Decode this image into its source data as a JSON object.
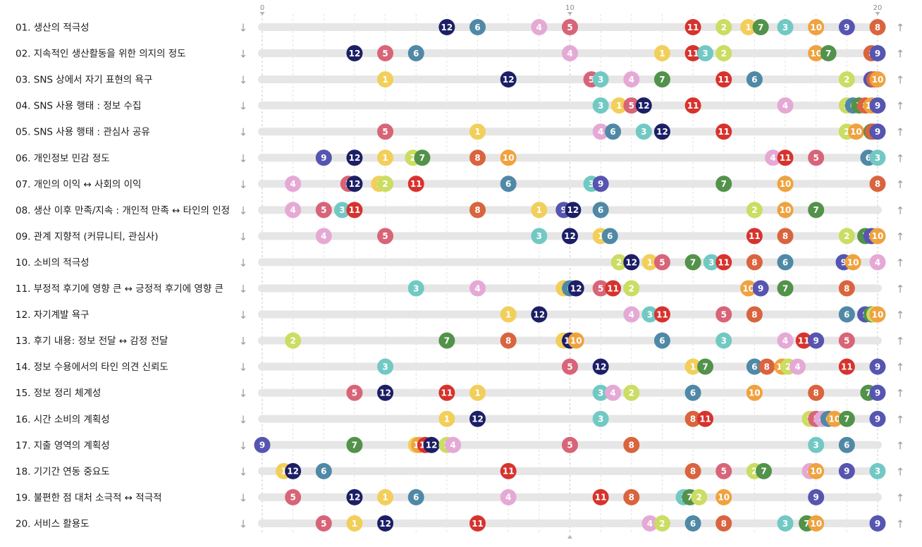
{
  "chart_data": {
    "type": "scatter",
    "xlim": [
      0,
      20
    ],
    "x_ticks": [
      "0",
      "10",
      "20"
    ],
    "low_arrow": "↓",
    "high_arrow": "↑",
    "series_colors": {
      "1": "#f2cf5b",
      "2": "#cbdd62",
      "3": "#72c9c4",
      "4": "#e5a9d6",
      "5": "#d86478",
      "6": "#4f89a6",
      "7": "#52924a",
      "8": "#d9643e",
      "9": "#5655b0",
      "10": "#efa23e",
      "11": "#d7332e",
      "12": "#1c1f66"
    },
    "rows": [
      {
        "label": "01. 생산의 적극성",
        "points": {
          "12": 6,
          "6": 7,
          "4": 9,
          "5": 10,
          "11": 14,
          "2": 15,
          "1": 15.8,
          "7": 16.2,
          "3": 17,
          "10": 18,
          "9": 19,
          "8": 20
        }
      },
      {
        "label": "02. 지속적인 생산활동을 위한 의지의 정도",
        "points": {
          "12": 3,
          "5": 4,
          "6": 5,
          "4": 10,
          "1": 13,
          "11": 14,
          "3": 14.4,
          "2": 15,
          "10": 18,
          "7": 18.4,
          "8": 19.8,
          "9": 20
        }
      },
      {
        "label": "03. SNS 상에서 자기 표현의 욕구",
        "points": {
          "1": 4,
          "12": 8,
          "5": 10.7,
          "3": 11,
          "4": 12,
          "7": 13,
          "11": 15,
          "6": 16,
          "2": 19,
          "9": 19.8,
          "8": 19.9,
          "10": 20
        }
      },
      {
        "label": "04. SNS 사용 행태 : 정보 수집",
        "points": {
          "3": 11,
          "1": 11.6,
          "5": 12,
          "12": 12.4,
          "11": 14,
          "4": 17,
          "2": 19,
          "6": 19.2,
          "7": 19.4,
          "8": 19.6,
          "10": 19.8,
          "9": 20
        }
      },
      {
        "label": "05. SNS 사용 행태 : 관심사 공유",
        "points": {
          "5": 4,
          "1": 7,
          "4": 11,
          "6": 11.4,
          "3": 12.4,
          "12": 13,
          "11": 15,
          "2": 19,
          "10": 19.3,
          "7": 19.8,
          "8": 19.85,
          "9": 20
        }
      },
      {
        "label": "06. 개인정보 민감 정도",
        "points": {
          "9": 2,
          "12": 3,
          "1": 4,
          "2": 4.9,
          "7": 5.2,
          "8": 7,
          "10": 8,
          "4": 16.6,
          "11": 17,
          "5": 18,
          "6": 19.7,
          "3": 20
        }
      },
      {
        "label": "07. 개인의 이익 ↔ 사회의 이익",
        "points": {
          "4": 1,
          "5": 2.8,
          "12": 3,
          "1": 3.8,
          "2": 4,
          "11": 5,
          "6": 8,
          "3": 10.7,
          "9": 11,
          "7": 15,
          "10": 17,
          "8": 20
        }
      },
      {
        "label": "08. 생산 이후 만족/지속 : 개인적 만족 ↔ 타인의 인정",
        "points": {
          "4": 1,
          "5": 2,
          "3": 2.6,
          "11": 3,
          "8": 7,
          "1": 9,
          "9": 9.8,
          "12": 10.1,
          "6": 11,
          "2": 16,
          "10": 17,
          "7": 18
        }
      },
      {
        "label": "09. 관계 지향적 (커뮤니티, 관심사)",
        "points": {
          "4": 2,
          "5": 4,
          "3": 9,
          "12": 10,
          "1": 11,
          "6": 11.3,
          "11": 16,
          "8": 17,
          "2": 19,
          "7": 19.6,
          "9": 19.8,
          "10": 20
        }
      },
      {
        "label": "10. 소비의 적극성",
        "points": {
          "2": 11.6,
          "12": 12,
          "1": 12.6,
          "5": 13,
          "7": 14,
          "3": 14.6,
          "11": 15,
          "8": 16,
          "6": 17,
          "9": 18.9,
          "10": 19.2,
          "4": 20
        }
      },
      {
        "label": "11. 부정적 후기에 영향 큰 ↔ 긍정적 후기에 영향 큰",
        "points": {
          "3": 5,
          "4": 7,
          "1": 9.8,
          "6": 10,
          "12": 10.2,
          "5": 11,
          "11": 11.4,
          "2": 12,
          "10": 15.8,
          "9": 16.2,
          "7": 17,
          "8": 19
        }
      },
      {
        "label": "12. 자기계발 욕구",
        "points": {
          "1": 8,
          "12": 9,
          "4": 12,
          "3": 12.6,
          "11": 13,
          "5": 15,
          "8": 16,
          "6": 19,
          "9": 19.6,
          "7": 19.8,
          "2": 19.9,
          "10": 20
        }
      },
      {
        "label": "13. 후기 내용: 정보 전달 ↔ 감정 전달",
        "points": {
          "2": 1,
          "7": 6,
          "8": 8,
          "1": 9.8,
          "12": 10,
          "10": 10.2,
          "6": 13,
          "3": 15,
          "4": 17,
          "11": 17.6,
          "9": 18,
          "5": 19
        }
      },
      {
        "label": "14. 정보 수용에서의 타인 의견 신뢰도",
        "points": {
          "3": 4,
          "5": 10,
          "12": 11,
          "1": 14,
          "7": 14.4,
          "6": 16,
          "8": 16.4,
          "10": 16.9,
          "2": 17.1,
          "4": 17.4,
          "11": 19,
          "9": 20
        }
      },
      {
        "label": "15. 정보 정리 체계성",
        "points": {
          "5": 3,
          "12": 4,
          "11": 6,
          "1": 7,
          "3": 11,
          "4": 11.4,
          "2": 12,
          "6": 14,
          "10": 16,
          "8": 18,
          "7": 19.7,
          "9": 20
        }
      },
      {
        "label": "16. 시간 소비의 계획성",
        "points": {
          "1": 6,
          "12": 7,
          "3": 11,
          "8": 14,
          "11": 14.4,
          "2": 17.8,
          "5": 18,
          "4": 18.2,
          "6": 18.4,
          "10": 18.6,
          "7": 19,
          "9": 20
        }
      },
      {
        "label": "17. 지출 영역의 계획성",
        "points": {
          "9": 0,
          "7": 3,
          "1": 5,
          "10": 5.1,
          "11": 5.3,
          "12": 5.5,
          "2": 6,
          "4": 6.2,
          "5": 10,
          "8": 12,
          "3": 18,
          "6": 19
        }
      },
      {
        "label": "18. 기기간 연동 중요도",
        "points": {
          "1": 0.7,
          "12": 1,
          "6": 2,
          "11": 8,
          "8": 14,
          "5": 15,
          "2": 16,
          "7": 16.3,
          "4": 17.8,
          "10": 18,
          "9": 19,
          "3": 20
        }
      },
      {
        "label": "19. 불편한 점 대처 소극적 ↔ 적극적",
        "points": {
          "5": 1,
          "12": 3,
          "1": 4,
          "6": 5,
          "4": 8,
          "11": 11,
          "8": 12,
          "3": 13.7,
          "7": 13.9,
          "2": 14.2,
          "10": 15,
          "9": 18
        }
      },
      {
        "label": "20. 서비스 활용도",
        "points": {
          "5": 2,
          "1": 3,
          "12": 4,
          "11": 7,
          "4": 12.6,
          "2": 13,
          "6": 14,
          "8": 15,
          "3": 17,
          "7": 17.7,
          "10": 18,
          "9": 20
        }
      }
    ]
  }
}
